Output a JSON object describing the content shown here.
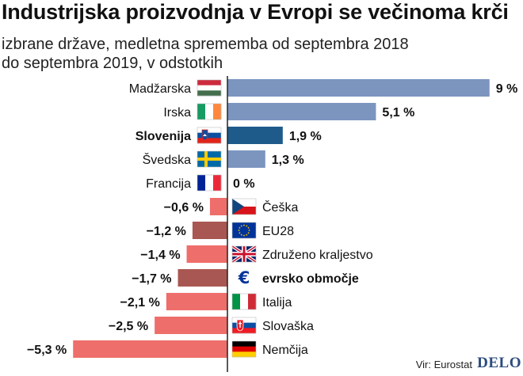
{
  "title": "Industrijska proizvodnja v Evropi se večinoma krči",
  "subtitle_line1": "izbrane države, medletna sprememba od septembra 2018",
  "subtitle_line2": "do septembra 2019, v odstotkih",
  "source": "Vir: Eurostat",
  "brand": "DELO",
  "colors": {
    "positive": "#7b95bf",
    "highlight_positive": "#1f5b8a",
    "negative": "#ee6e6b",
    "aggregate_negative": "#a95752",
    "axis": "#222222"
  },
  "chart_data": {
    "type": "bar",
    "orientation": "horizontal",
    "title": "Industrijska proizvodnja v Evropi se večinoma krči",
    "unit": "%",
    "xlim": [
      -5.3,
      9
    ],
    "categories": [
      "Madžarska",
      "Irska",
      "Slovenija",
      "Švedska",
      "Francija",
      "Češka",
      "EU28",
      "Združeno kraljestvo",
      "evrsko območje",
      "Italija",
      "Slovaška",
      "Nemčija"
    ],
    "values": [
      9,
      5.1,
      1.9,
      1.3,
      0,
      -0.6,
      -1.2,
      -1.4,
      -1.7,
      -2.1,
      -2.5,
      -5.3
    ],
    "value_labels": [
      "9 %",
      "5,1 %",
      "1,9 %",
      "1,3 %",
      "0 %",
      "−0,6 %",
      "−1,2 %",
      "−1,4 %",
      "−1,7 %",
      "−2,1 %",
      "−2,5 %",
      "−5,3 %"
    ],
    "flags": [
      "hungary-flag",
      "ireland-flag",
      "slovenia-flag",
      "sweden-flag",
      "france-flag",
      "czechia-flag",
      "eu-flag",
      "uk-flag",
      "euro-symbol",
      "italy-flag",
      "slovakia-flag",
      "germany-flag"
    ],
    "emphasis": [
      "normal",
      "normal",
      "highlight",
      "normal",
      "normal",
      "normal",
      "aggregate",
      "normal",
      "aggregate",
      "normal",
      "normal",
      "normal"
    ]
  }
}
